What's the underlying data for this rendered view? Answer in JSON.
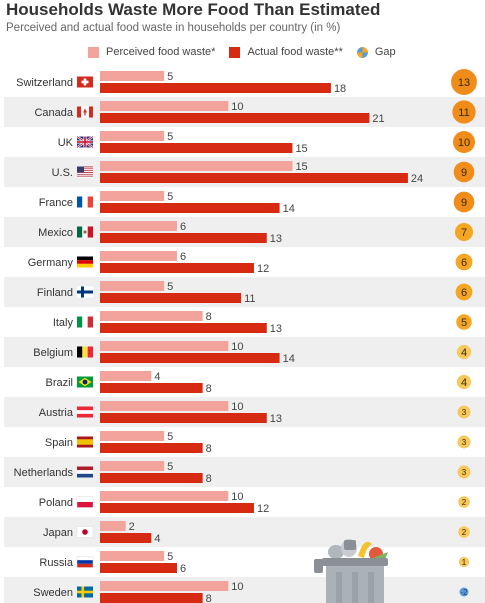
{
  "title": "Households Waste More Food Than Estimated",
  "subtitle": "Perceived and actual food waste in households per country (in %)",
  "legend": {
    "perceived": "Perceived food waste*",
    "actual": "Actual food waste**",
    "gap": "Gap"
  },
  "colors": {
    "perceived": "#f2a39b",
    "actual": "#d62b12",
    "gap_large": "#f08c1a",
    "gap_medium": "#f5a623",
    "gap_small": "#f7c85b",
    "gap_blue": "#5b9bd5",
    "row_stripe": "#efefef"
  },
  "chart_data": {
    "type": "bar",
    "orientation": "horizontal",
    "categories": [
      "Switzerland",
      "Canada",
      "UK",
      "U.S.",
      "France",
      "Mexico",
      "Germany",
      "Finland",
      "Italy",
      "Belgium",
      "Brazil",
      "Austria",
      "Spain",
      "Netherlands",
      "Poland",
      "Japan",
      "Russia",
      "Sweden"
    ],
    "series": [
      {
        "name": "Perceived food waste*",
        "values": [
          5,
          10,
          5,
          15,
          5,
          6,
          6,
          5,
          8,
          10,
          4,
          10,
          5,
          5,
          10,
          2,
          5,
          10
        ]
      },
      {
        "name": "Actual food waste**",
        "values": [
          18,
          21,
          15,
          24,
          14,
          13,
          12,
          11,
          13,
          14,
          8,
          13,
          8,
          8,
          12,
          4,
          6,
          8
        ]
      }
    ],
    "gap": {
      "name": "Gap",
      "values": [
        13,
        11,
        10,
        9,
        9,
        7,
        6,
        6,
        5,
        4,
        4,
        3,
        3,
        3,
        2,
        2,
        1,
        -2
      ],
      "labels": [
        "13",
        "11",
        "10",
        "9",
        "9",
        "7",
        "6",
        "6",
        "5",
        "4",
        "4",
        "3",
        "3",
        "3",
        "2",
        "2",
        "1",
        "-2"
      ]
    },
    "xlim": [
      0,
      25
    ],
    "grid": false,
    "legend_position": "top"
  }
}
